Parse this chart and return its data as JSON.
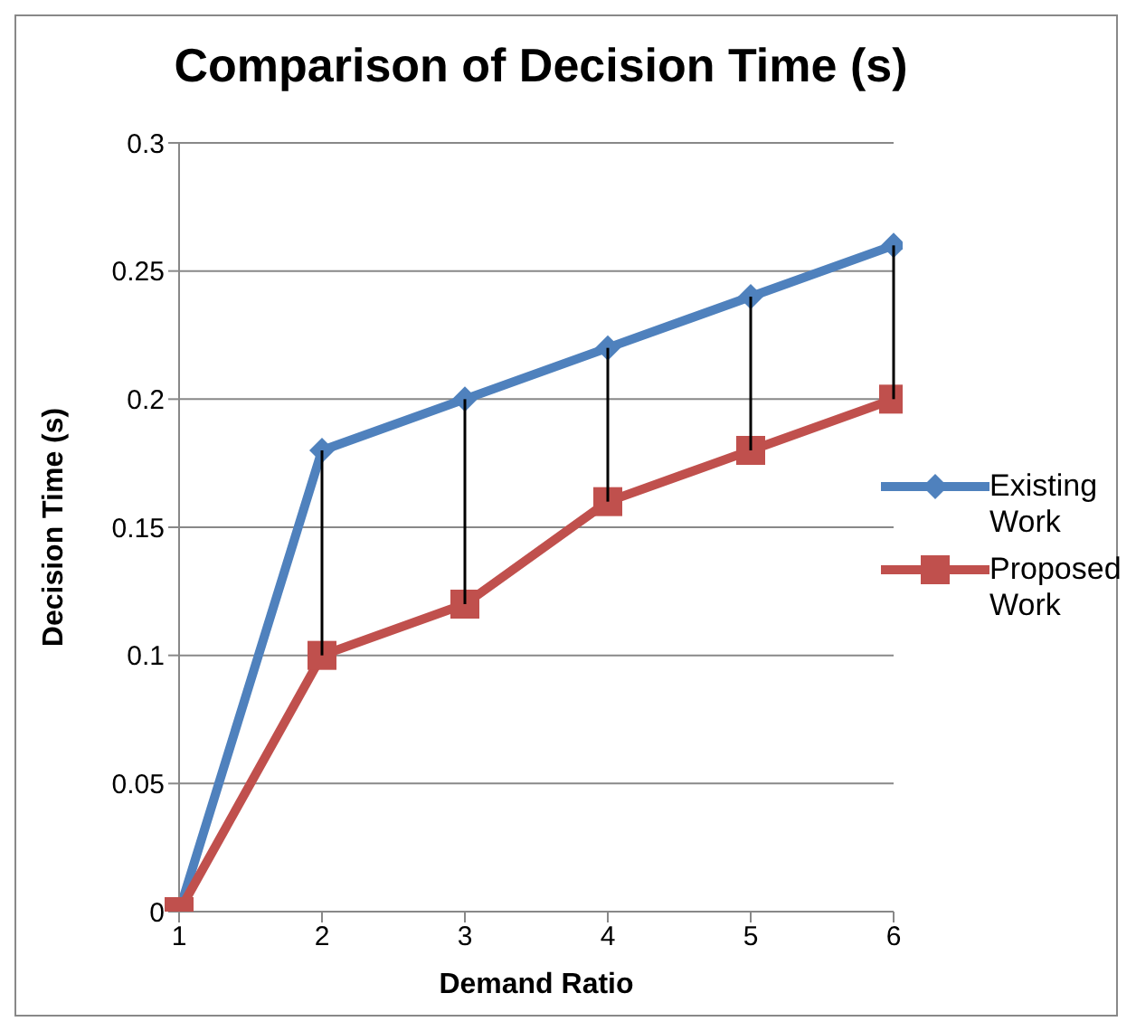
{
  "chart_data": {
    "type": "line",
    "title": "Comparison of Decision Time (s)",
    "xlabel": "Demand Ratio",
    "ylabel": "Decision Time (s)",
    "categories": [
      "1",
      "2",
      "3",
      "4",
      "5",
      "6"
    ],
    "series": [
      {
        "name": "Existing Work",
        "color": "#4f81bd",
        "marker": "diamond",
        "values": [
          0,
          0.18,
          0.2,
          0.22,
          0.24,
          0.26
        ]
      },
      {
        "name": "Proposed Work",
        "color": "#c0504d",
        "marker": "square",
        "values": [
          0,
          0.1,
          0.12,
          0.16,
          0.18,
          0.2
        ],
        "errors": [
          null,
          [
            0.1,
            0.18
          ],
          [
            0.12,
            0.2
          ],
          [
            0.16,
            0.22
          ],
          [
            0.18,
            0.24
          ],
          [
            0.2,
            0.26
          ]
        ]
      }
    ],
    "ylim": [
      0,
      0.3
    ],
    "yticks": [
      0,
      0.05,
      0.1,
      0.15,
      0.2,
      0.25,
      0.3
    ],
    "grid": "y",
    "legend": "right"
  }
}
